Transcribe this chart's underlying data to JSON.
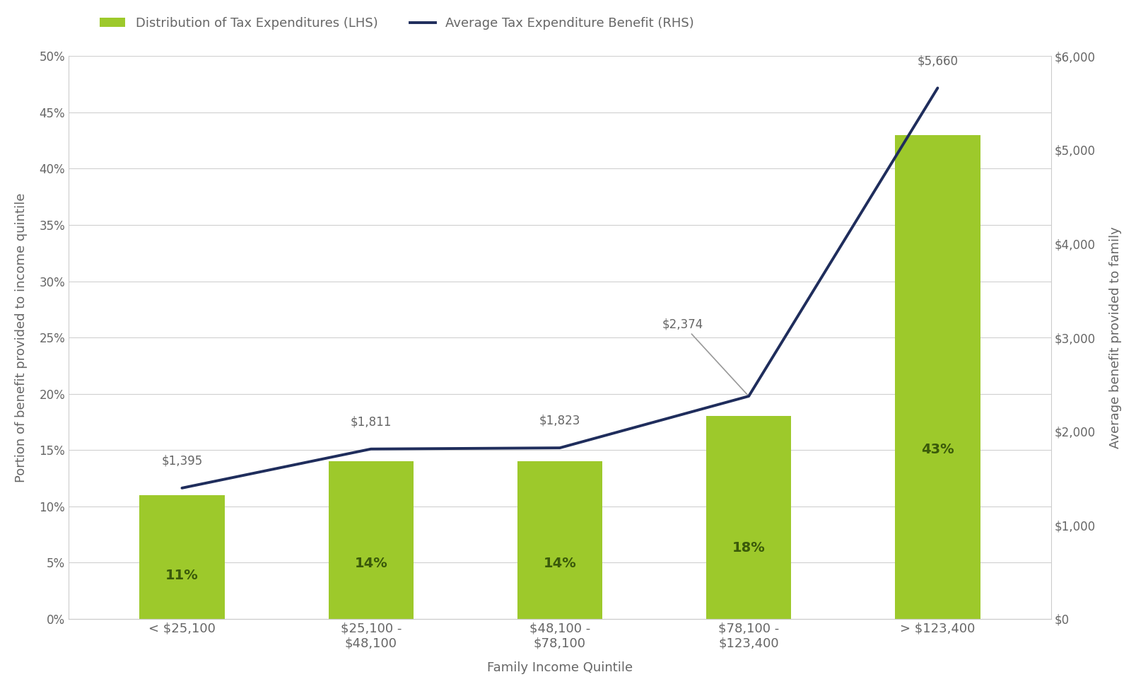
{
  "categories": [
    "< $25,100",
    "$25,100 -\n$48,100",
    "$48,100 -\n$78,100",
    "$78,100 -\n$123,400",
    "> $123,400"
  ],
  "bar_values": [
    0.11,
    0.14,
    0.14,
    0.18,
    0.43
  ],
  "bar_labels": [
    "11%",
    "14%",
    "14%",
    "18%",
    "43%"
  ],
  "line_values": [
    1395,
    1811,
    1823,
    2374,
    5660
  ],
  "line_labels": [
    "$1,395",
    "$1,811",
    "$1,823",
    "$2,374",
    "$5,660"
  ],
  "bar_color": "#9dc92b",
  "line_color": "#1f2d5c",
  "ylim_left": [
    0,
    0.5
  ],
  "ylim_right": [
    0,
    6000
  ],
  "yticks_left": [
    0.0,
    0.05,
    0.1,
    0.15,
    0.2,
    0.25,
    0.3,
    0.35,
    0.4,
    0.45,
    0.5
  ],
  "yticks_right": [
    0,
    1000,
    2000,
    3000,
    4000,
    5000,
    6000
  ],
  "xlabel": "Family Income Quintile",
  "ylabel_left": "Portion of benefit provided to income quintile",
  "ylabel_right": "Average benefit provided to family",
  "legend_bar": "Distribution of Tax Expenditures (LHS)",
  "legend_line": "Average Tax Expenditure Benefit (RHS)",
  "label_fontsize": 13,
  "tick_fontsize": 12,
  "bar_label_fontsize": 14,
  "line_label_fontsize": 12,
  "background_color": "#ffffff",
  "text_color": "#666666",
  "bar_label_color": "#3a5a0a",
  "bar_width": 0.45,
  "grid_color": "#d0d0d0",
  "spine_color": "#cccccc"
}
